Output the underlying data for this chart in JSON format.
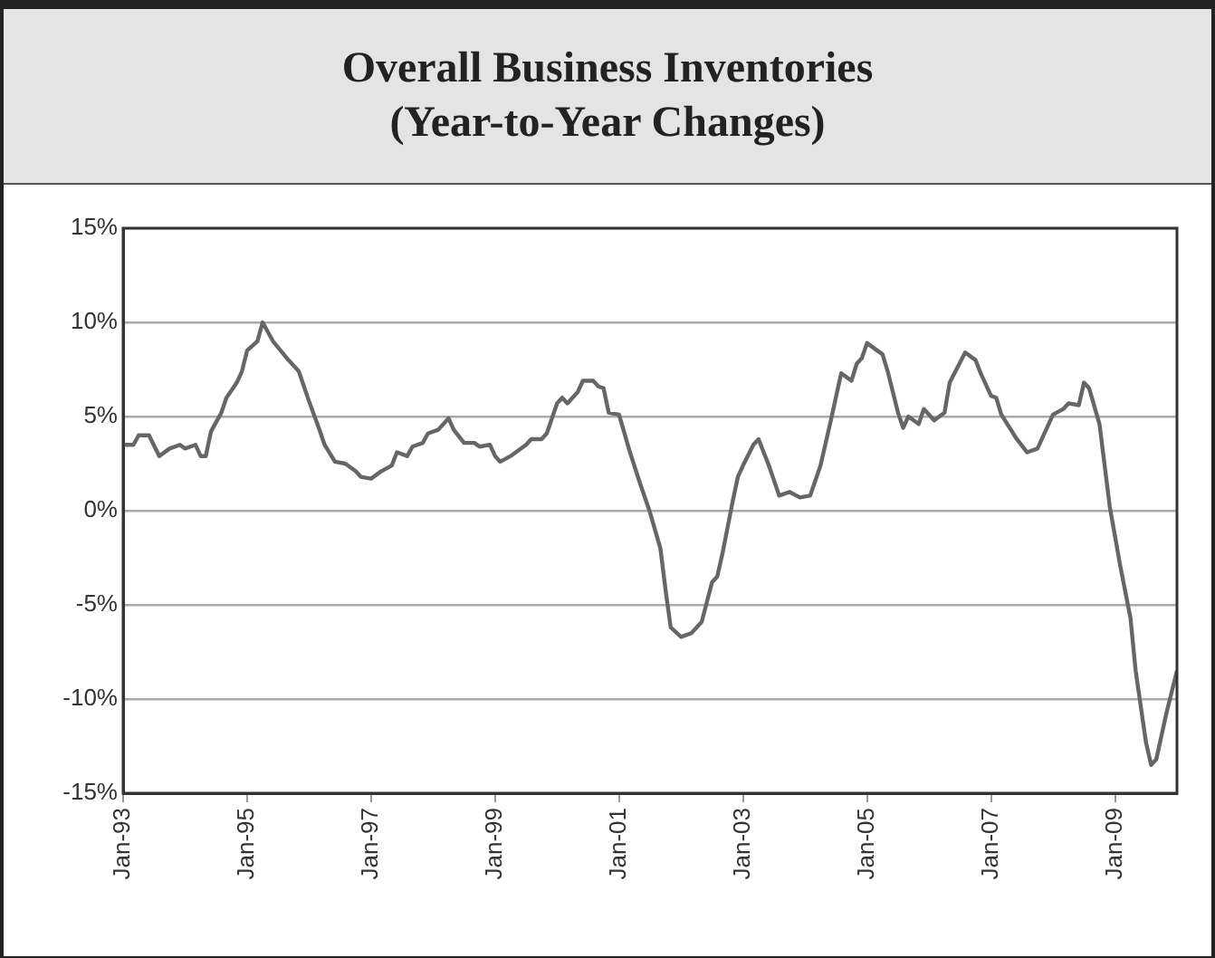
{
  "chart_data": {
    "type": "line",
    "title": "Overall Business Inventories\n(Year-to-Year Changes)",
    "x": [
      "1993-01",
      "1993-03",
      "1993-04",
      "1993-06",
      "1993-08",
      "1993-10",
      "1993-12",
      "1994-01",
      "1994-03",
      "1994-04",
      "1994-05",
      "1994-06",
      "1994-08",
      "1994-09",
      "1994-11",
      "1994-12",
      "1995-01",
      "1995-03",
      "1995-04",
      "1995-06",
      "1995-09",
      "1995-11",
      "1996-01",
      "1996-03",
      "1996-04",
      "1996-06",
      "1996-08",
      "1996-10",
      "1996-11",
      "1997-01",
      "1997-03",
      "1997-05",
      "1997-06",
      "1997-08",
      "1997-09",
      "1997-11",
      "1997-12",
      "1998-02",
      "1998-04",
      "1998-05",
      "1998-07",
      "1998-09",
      "1998-10",
      "1998-12",
      "1999-01",
      "1999-02",
      "1999-04",
      "1999-07",
      "1999-08",
      "1999-10",
      "1999-11",
      "2000-01",
      "2000-02",
      "2000-03",
      "2000-05",
      "2000-06",
      "2000-08",
      "2000-09",
      "2000-10",
      "2000-11",
      "2001-01",
      "2001-03",
      "2001-05",
      "2001-07",
      "2001-09",
      "2001-10",
      "2001-11",
      "2002-01",
      "2002-03",
      "2002-05",
      "2002-07",
      "2002-08",
      "2002-09",
      "2002-11",
      "2002-12",
      "2003-01",
      "2003-03",
      "2003-04",
      "2003-06",
      "2003-08",
      "2003-10",
      "2003-12",
      "2004-02",
      "2004-04",
      "2004-06",
      "2004-08",
      "2004-10",
      "2004-11",
      "2004-12",
      "2005-01",
      "2005-04",
      "2005-05",
      "2005-07",
      "2005-08",
      "2005-09",
      "2005-11",
      "2005-12",
      "2006-02",
      "2006-04",
      "2006-05",
      "2006-08",
      "2006-10",
      "2006-11",
      "2007-01",
      "2007-02",
      "2007-03",
      "2007-06",
      "2007-08",
      "2007-10",
      "2008-01",
      "2008-03",
      "2008-04",
      "2008-06",
      "2008-07",
      "2008-08",
      "2008-10",
      "2008-12",
      "2009-02",
      "2009-04",
      "2009-05",
      "2009-07",
      "2009-08",
      "2009-09",
      "2009-11",
      "2010-01"
    ],
    "series": [
      {
        "color": "#666666",
        "values": [
          3.5,
          3.5,
          4.0,
          4.0,
          2.9,
          3.3,
          3.5,
          3.3,
          3.5,
          2.9,
          2.9,
          4.2,
          5.2,
          6.0,
          6.8,
          7.4,
          8.5,
          9.0,
          10.0,
          9.0,
          8.0,
          7.4,
          5.8,
          4.3,
          3.5,
          2.6,
          2.5,
          2.1,
          1.8,
          1.7,
          2.1,
          2.4,
          3.1,
          2.9,
          3.4,
          3.6,
          4.1,
          4.3,
          4.9,
          4.3,
          3.6,
          3.6,
          3.4,
          3.5,
          2.9,
          2.6,
          2.9,
          3.5,
          3.8,
          3.8,
          4.1,
          5.7,
          6.0,
          5.7,
          6.3,
          6.9,
          6.9,
          6.6,
          6.5,
          5.2,
          5.1,
          3.2,
          1.5,
          -0.1,
          -2.0,
          -4.2,
          -6.2,
          -6.7,
          -6.5,
          -5.9,
          -3.8,
          -3.5,
          -2.3,
          0.5,
          1.8,
          2.4,
          3.5,
          3.8,
          2.4,
          0.8,
          1.0,
          0.7,
          0.8,
          2.4,
          4.8,
          7.3,
          6.9,
          7.8,
          8.1,
          8.9,
          8.3,
          7.4,
          5.2,
          4.4,
          5.0,
          4.6,
          5.4,
          4.8,
          5.2,
          6.8,
          8.4,
          8.0,
          7.3,
          6.1,
          6.0,
          5.1,
          3.8,
          3.1,
          3.3,
          5.1,
          5.4,
          5.7,
          5.6,
          6.8,
          6.5,
          4.6,
          0.2,
          -2.9,
          -5.7,
          -8.5,
          -12.3,
          -13.5,
          -13.2,
          -10.7,
          -8.5
        ]
      }
    ],
    "xlim": [
      "1993-01",
      "2010-01"
    ],
    "xticks": [
      {
        "value": "1993-01",
        "label": "Jan-93"
      },
      {
        "value": "1995-01",
        "label": "Jan-95"
      },
      {
        "value": "1997-01",
        "label": "Jan-97"
      },
      {
        "value": "1999-01",
        "label": "Jan-99"
      },
      {
        "value": "2001-01",
        "label": "Jan-01"
      },
      {
        "value": "2003-01",
        "label": "Jan-03"
      },
      {
        "value": "2005-01",
        "label": "Jan-05"
      },
      {
        "value": "2007-01",
        "label": "Jan-07"
      },
      {
        "value": "2009-01",
        "label": "Jan-09"
      }
    ],
    "ylim": [
      -15,
      15
    ],
    "yticks": [
      {
        "value": -15,
        "label": "-15%"
      },
      {
        "value": -10,
        "label": "-10%"
      },
      {
        "value": -5,
        "label": "-5%"
      },
      {
        "value": 0,
        "label": "0%"
      },
      {
        "value": 5,
        "label": "5%"
      },
      {
        "value": 10,
        "label": "10%"
      },
      {
        "value": 15,
        "label": "15%"
      }
    ],
    "grid": "y",
    "legend": false,
    "marker": "none",
    "line_style": "solid"
  }
}
